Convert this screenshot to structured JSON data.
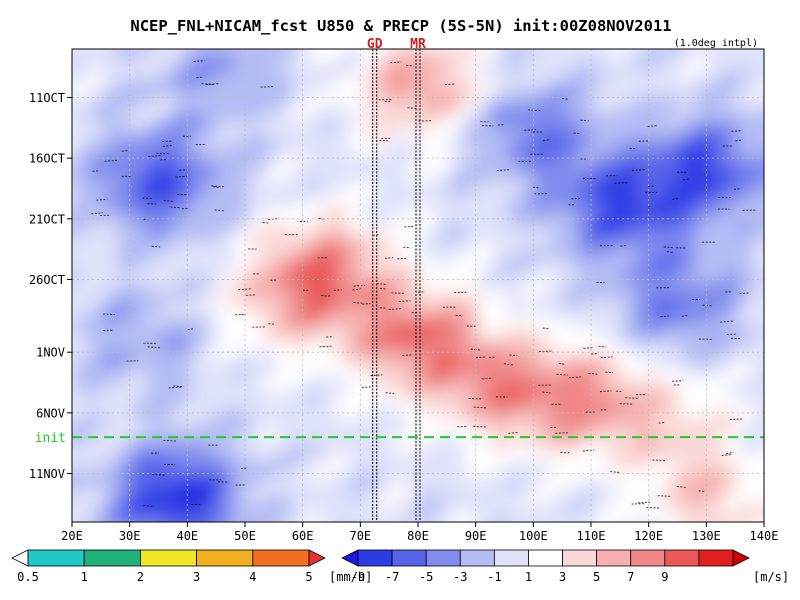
{
  "chart_data": {
    "type": "heatmap",
    "title": "NCEP_FNL+NICAM_fcst U850 & PRECP (5S-5N) init:00Z08NOV2011",
    "subtitle": "(1.0deg intpl)",
    "x_ticks": [
      "20E",
      "30E",
      "40E",
      "50E",
      "60E",
      "70E",
      "80E",
      "90E",
      "100E",
      "110E",
      "120E",
      "130E",
      "140E"
    ],
    "xlim": [
      20,
      140
    ],
    "y_ticks": [
      "11OCT",
      "16OCT",
      "21OCT",
      "26OCT",
      "1NOV",
      "6NOV",
      "11NOV"
    ],
    "y_tick_days": [
      11,
      16,
      21,
      26,
      32,
      37,
      42
    ],
    "ylim_days": [
      7,
      46
    ],
    "markers": [
      {
        "label": "GD",
        "lon": 72.5,
        "color": "#d02020"
      },
      {
        "label": "MR",
        "lon": 80,
        "color": "#d02020"
      }
    ],
    "init_line": {
      "label": "init",
      "day": 39.0,
      "color": "#22cc22"
    },
    "u850_features": [
      {
        "lon": 80,
        "day": 10,
        "value": 7
      },
      {
        "lon": 65,
        "day": 25,
        "value": 7
      },
      {
        "lon": 58,
        "day": 28,
        "value": 5
      },
      {
        "lon": 80,
        "day": 31,
        "value": 9
      },
      {
        "lon": 95,
        "day": 35,
        "value": 7
      },
      {
        "lon": 110,
        "day": 36,
        "value": 7
      },
      {
        "lon": 125,
        "day": 38,
        "value": 3
      },
      {
        "lon": 35,
        "day": 18,
        "value": -7
      },
      {
        "lon": 38,
        "day": 44,
        "value": -9
      },
      {
        "lon": 115,
        "day": 20,
        "value": -7
      },
      {
        "lon": 130,
        "day": 17,
        "value": -7
      },
      {
        "lon": 100,
        "day": 14,
        "value": -5
      },
      {
        "lon": 125,
        "day": 28,
        "value": -5
      },
      {
        "lon": 32,
        "day": 31,
        "value": -3
      },
      {
        "lon": 45,
        "day": 9,
        "value": -3
      },
      {
        "lon": 130,
        "day": 44,
        "value": 5
      }
    ],
    "precip_colorbar": {
      "labels": [
        "0.5",
        "1",
        "2",
        "3",
        "4",
        "5"
      ],
      "unit": "[mm/h]",
      "colors": [
        "#ffffff",
        "#20c8c8",
        "#20b078",
        "#f0e628",
        "#f0b020",
        "#f07020",
        "#e83030"
      ]
    },
    "u850_colorbar": {
      "labels": [
        "-9",
        "-7",
        "-5",
        "-3",
        "-1",
        "1",
        "3",
        "5",
        "7",
        "9"
      ],
      "unit": "[m/s]",
      "colors": [
        "#1a1ae0",
        "#2e3ce6",
        "#5664ea",
        "#808cee",
        "#b4bcf4",
        "#dfe2fa",
        "#ffffff",
        "#fbd8d8",
        "#f6b0b0",
        "#f08888",
        "#ea5858",
        "#e22020",
        "#cc0000"
      ]
    }
  }
}
